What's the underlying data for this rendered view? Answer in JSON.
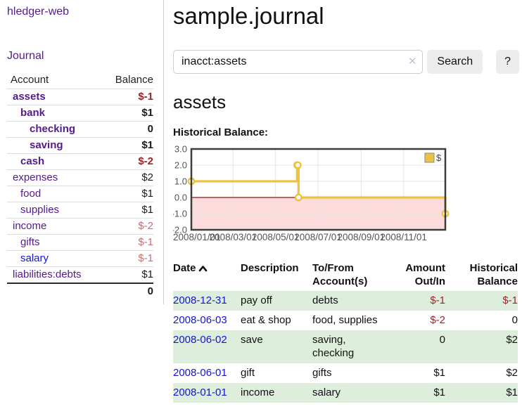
{
  "app_title": "hledger-web",
  "sidebar": {
    "journal_link": "Journal",
    "table": {
      "account_header": "Account",
      "balance_header": "Balance",
      "rows": [
        {
          "name": "assets",
          "balance": "$-1"
        },
        {
          "name": "bank",
          "balance": "$1"
        },
        {
          "name": "checking",
          "balance": "0"
        },
        {
          "name": "saving",
          "balance": "$1"
        },
        {
          "name": "cash",
          "balance": "$-2"
        },
        {
          "name": "expenses",
          "balance": "$2"
        },
        {
          "name": "food",
          "balance": "$1"
        },
        {
          "name": "supplies",
          "balance": "$1"
        },
        {
          "name": "income",
          "balance": "$-2"
        },
        {
          "name": "gifts",
          "balance": "$-1"
        },
        {
          "name": "salary",
          "balance": "$-1"
        },
        {
          "name": "liabilities:debts",
          "balance": "$1"
        }
      ],
      "total": "0"
    }
  },
  "main": {
    "title": "sample.journal",
    "search": {
      "value": "inacct:assets",
      "clear_icon": "✕",
      "search_label": "Search",
      "help_label": "?"
    },
    "account_heading": "assets",
    "register": {
      "headers": {
        "date": "Date",
        "description": "Description",
        "accounts": "To/From Account(s)",
        "amount": "Amount Out/In",
        "balance": "Historical Balance"
      },
      "rows": [
        {
          "date": "2008-12-31",
          "description": "pay off",
          "accounts": "debts",
          "amount": "$-1",
          "balance": "$-1"
        },
        {
          "date": "2008-06-03",
          "description": "eat & shop",
          "accounts": "food, supplies",
          "amount": "$-2",
          "balance": "0"
        },
        {
          "date": "2008-06-02",
          "description": "save",
          "accounts": "saving, checking",
          "amount": "0",
          "balance": "$2"
        },
        {
          "date": "2008-06-01",
          "description": "gift",
          "accounts": "gifts",
          "amount": "$1",
          "balance": "$2"
        },
        {
          "date": "2008-01-01",
          "description": "income",
          "accounts": "salary",
          "amount": "$1",
          "balance": "$1"
        }
      ]
    }
  },
  "colors": {
    "link_purple": "#551a8b",
    "link_blue": "#1414d2",
    "negative_dark": "#9d2328",
    "negative_light": "#c47173",
    "row_green": "#ddeedd",
    "series_gold": "#edc240",
    "negative_fill": "#fbdbdb",
    "zero_line": "#8e1515",
    "grid": "#e6e6e6",
    "plot_border": "#3c3c3c",
    "tick_text": "#545454"
  },
  "chart_data": {
    "type": "line",
    "step": true,
    "title": "Historical Balance:",
    "legend": [
      {
        "label": "$",
        "color": "#edc240",
        "position": "top-right"
      }
    ],
    "x_range": [
      "2008-01-01",
      "2008-12-31"
    ],
    "ylim": [
      -2.0,
      3.0
    ],
    "y_ticks": [
      3.0,
      2.0,
      1.0,
      0.0,
      -1.0,
      -2.0
    ],
    "x_ticks": [
      {
        "t": "2008-01-01",
        "label": "2008/01/01"
      },
      {
        "t": "2008-03-01",
        "label": "2008/03/01"
      },
      {
        "t": "2008-05-01",
        "label": "2008/05/01"
      },
      {
        "t": "2008-07-01",
        "label": "2008/07/01"
      },
      {
        "t": "2008-09-01",
        "label": "2008/09/01"
      },
      {
        "t": "2008-11-01",
        "label": "2008/11/01"
      }
    ],
    "series": [
      {
        "name": "$",
        "points": [
          [
            "2008-01-01",
            1
          ],
          [
            "2008-06-01",
            2
          ],
          [
            "2008-06-02",
            2
          ],
          [
            "2008-06-03",
            0
          ],
          [
            "2008-12-31",
            -1
          ]
        ]
      }
    ],
    "negative_region_shaded": true,
    "grid": true,
    "legend_position": "top-right"
  }
}
